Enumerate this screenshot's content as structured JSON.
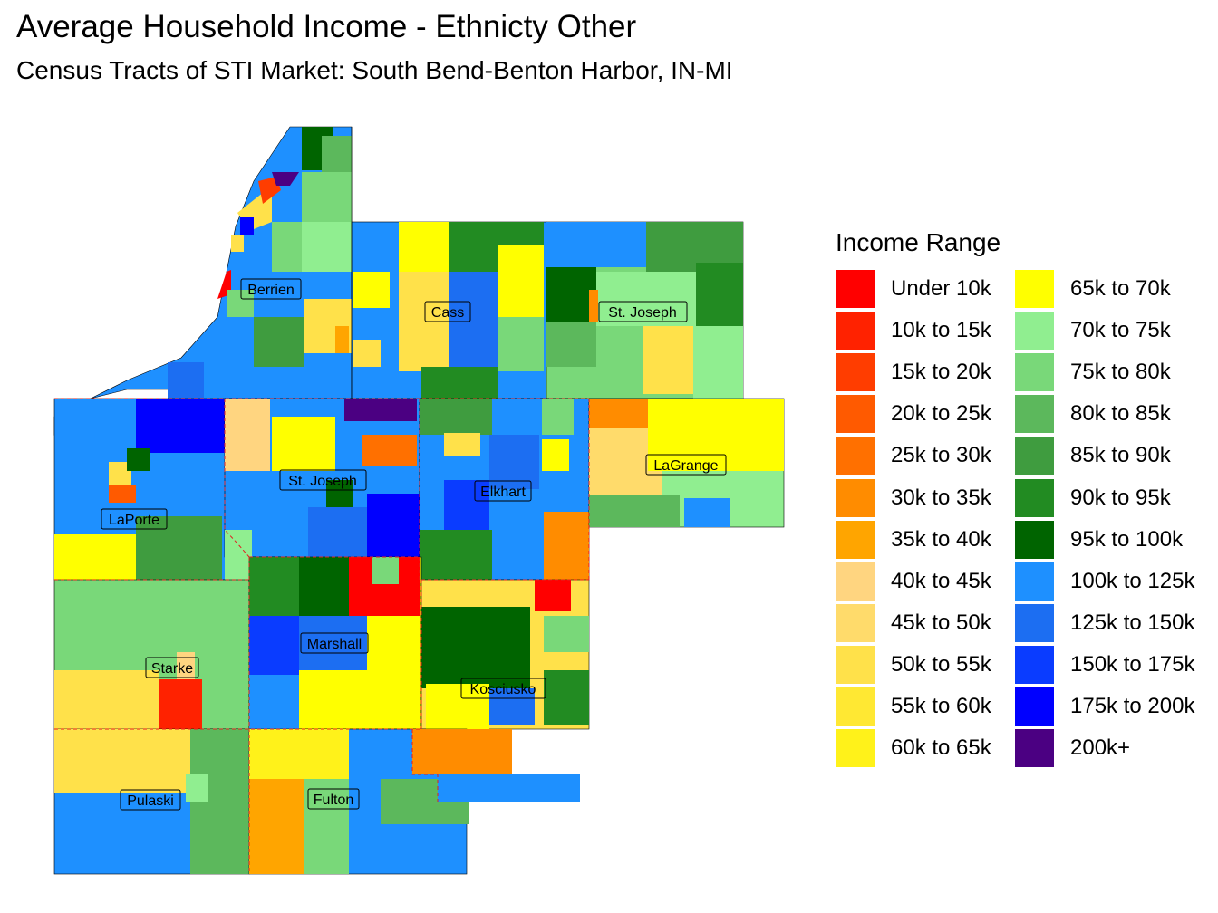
{
  "title": "Average Household Income - Ethnicty Other",
  "subtitle": "Census Tracts of STI Market: South Bend-Benton Harbor, IN-MI",
  "legend": {
    "title": "Income Range",
    "items": [
      {
        "label": "Under 10k",
        "color": "#FF0000"
      },
      {
        "label": "10k to 15k",
        "color": "#FF2200"
      },
      {
        "label": "15k to 20k",
        "color": "#FF3D00"
      },
      {
        "label": "20k to 25k",
        "color": "#FF5A00"
      },
      {
        "label": "25k to 30k",
        "color": "#FF7000"
      },
      {
        "label": "30k to 35k",
        "color": "#FF8C00"
      },
      {
        "label": "35k to 40k",
        "color": "#FFA500"
      },
      {
        "label": "40k to 45k",
        "color": "#FFD580"
      },
      {
        "label": "45k to 50k",
        "color": "#FFDB6B"
      },
      {
        "label": "50k to 55k",
        "color": "#FFE14A"
      },
      {
        "label": "55k to 60k",
        "color": "#FFE833"
      },
      {
        "label": "60k to 65k",
        "color": "#FFF21A"
      },
      {
        "label": "65k to 70k",
        "color": "#FFFF00"
      },
      {
        "label": "70k to 75k",
        "color": "#90EE90"
      },
      {
        "label": "75k to 80k",
        "color": "#79D879"
      },
      {
        "label": "80k to 85k",
        "color": "#5CB85C"
      },
      {
        "label": "85k to 90k",
        "color": "#3F9C3F"
      },
      {
        "label": "90k to 95k",
        "color": "#228B22"
      },
      {
        "label": "95k to 100k",
        "color": "#006400"
      },
      {
        "label": "100k to 125k",
        "color": "#1E90FF"
      },
      {
        "label": "125k to 150k",
        "color": "#1C6EF2"
      },
      {
        "label": "150k to 175k",
        "color": "#0A3CFF"
      },
      {
        "label": "175k to 200k",
        "color": "#0000FF"
      },
      {
        "label": "200k+",
        "color": "#4B0082"
      }
    ]
  },
  "counties": [
    "Berrien",
    "Cass",
    "St. Joseph",
    "St. Joseph",
    "LaPorte",
    "Elkhart",
    "LaGrange",
    "Starke",
    "Marshall",
    "Kosciusko",
    "Pulaski",
    "Fulton"
  ]
}
